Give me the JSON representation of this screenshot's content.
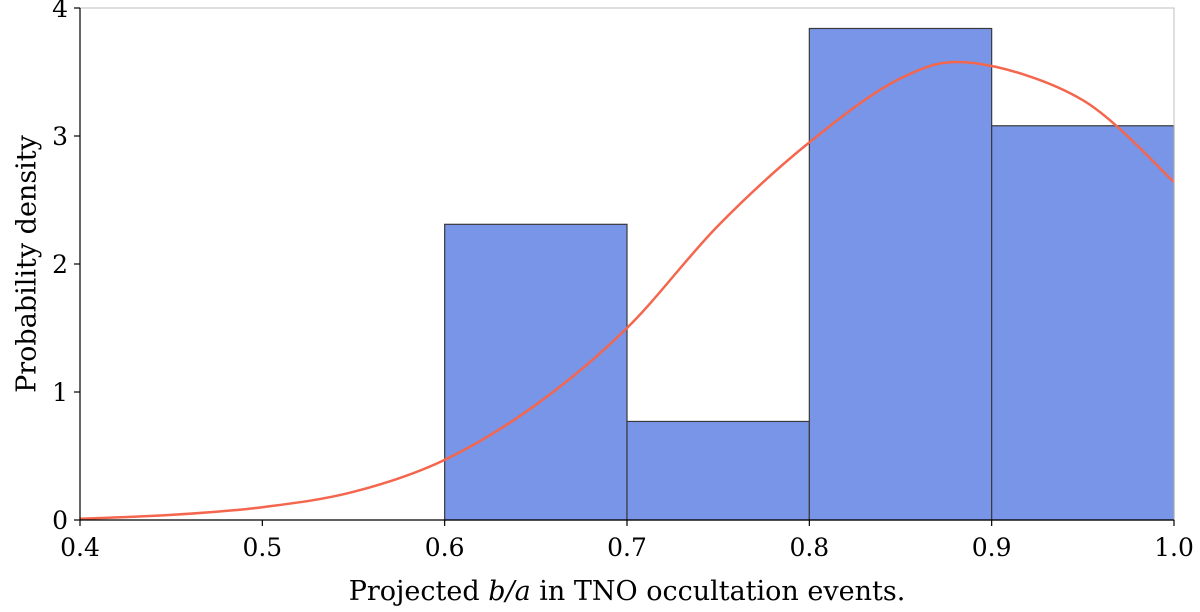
{
  "chart_data": {
    "type": "bar",
    "title": "",
    "xlabel_parts": [
      {
        "text": "Projected ",
        "italic": false
      },
      {
        "text": "b/a",
        "italic": true
      },
      {
        "text": " in TNO occultation events.",
        "italic": false
      }
    ],
    "ylabel": "Probability density",
    "xlim": [
      0.4,
      1.0
    ],
    "ylim": [
      0,
      4
    ],
    "xticks": [
      "0.4",
      "0.5",
      "0.6",
      "0.7",
      "0.8",
      "0.9",
      "1.0"
    ],
    "yticks": [
      "0",
      "1",
      "2",
      "3",
      "4"
    ],
    "grid": false,
    "legend": "none",
    "histogram": {
      "bin_edges": [
        0.6,
        0.7,
        0.8,
        0.9,
        1.0
      ],
      "values": [
        2.31,
        0.77,
        3.84,
        3.08
      ],
      "fill_color": "#7895e8",
      "edge_color": "#3a3a3a"
    },
    "curve": {
      "type": "line",
      "color": "#f4664d",
      "x": [
        0.4,
        0.45,
        0.5,
        0.55,
        0.6,
        0.65,
        0.7,
        0.75,
        0.8,
        0.85,
        0.89,
        0.95,
        1.0
      ],
      "y": [
        0.01,
        0.04,
        0.1,
        0.22,
        0.47,
        0.9,
        1.5,
        2.3,
        2.95,
        3.45,
        3.57,
        3.28,
        2.64
      ]
    }
  }
}
